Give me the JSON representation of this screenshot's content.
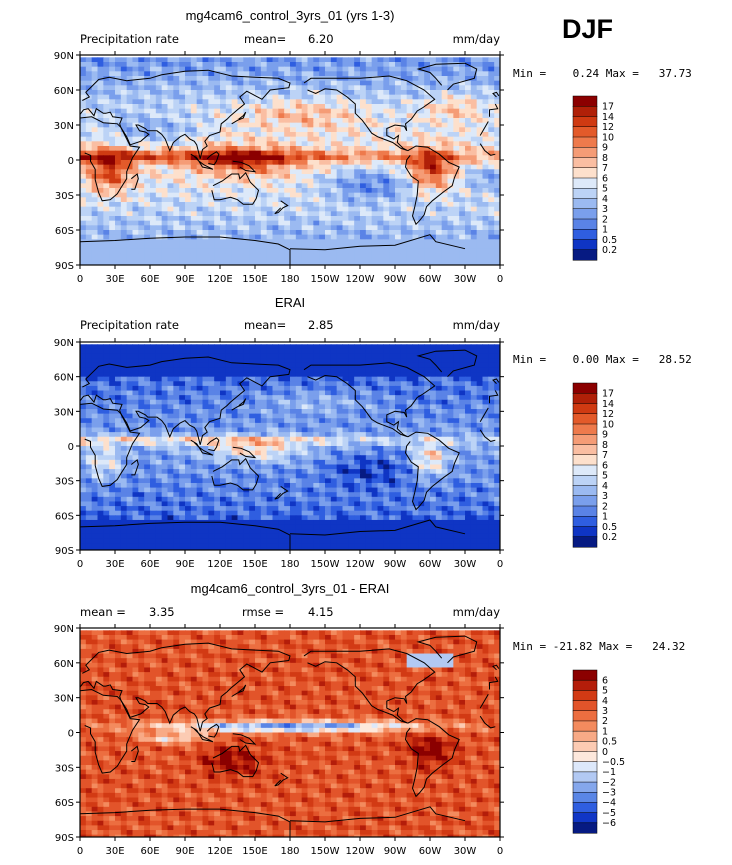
{
  "season": "DJF",
  "lat_labels": [
    "90N",
    "60N",
    "30N",
    "0",
    "30S",
    "60S",
    "90S"
  ],
  "lon_labels": [
    "0",
    "30E",
    "60E",
    "90E",
    "120E",
    "150E",
    "180",
    "150W",
    "120W",
    "90W",
    "60W",
    "30W",
    "0"
  ],
  "chart_data": [
    {
      "type": "heatmap",
      "title": "mg4cam6_control_3yrs_01 (yrs 1-3)",
      "left_label": "Precipitation rate",
      "center_label": "mean=",
      "center_value": "6.20",
      "units": "mm/day",
      "min_text": "Min =    0.24 Max =   37.73",
      "xlim": [
        0,
        360
      ],
      "ylim": [
        -90,
        90
      ],
      "colorbar_levels": [
        "17",
        "14",
        "12",
        "10",
        "9",
        "8",
        "7",
        "6",
        "5",
        "4",
        "3",
        "2",
        "1",
        "0.5",
        "0.2"
      ],
      "colors": [
        "#8b0000",
        "#b02008",
        "#cf3a12",
        "#e35a2a",
        "#ee7a4c",
        "#f59c76",
        "#fabea2",
        "#fde0cc",
        "#dde9f9",
        "#bcd3f6",
        "#9bbaf1",
        "#7a9fec",
        "#5a83e6",
        "#2f5ee0",
        "#0f35c4",
        "#061a82"
      ],
      "pattern": "model"
    },
    {
      "type": "heatmap",
      "title": "ERAI",
      "left_label": "Precipitation rate",
      "center_label": "mean=",
      "center_value": "2.85",
      "units": "mm/day",
      "min_text": "Min =    0.00 Max =   28.52",
      "xlim": [
        0,
        360
      ],
      "ylim": [
        -90,
        90
      ],
      "colorbar_levels": [
        "17",
        "14",
        "12",
        "10",
        "9",
        "8",
        "7",
        "6",
        "5",
        "4",
        "3",
        "2",
        "1",
        "0.5",
        "0.2"
      ],
      "colors": [
        "#8b0000",
        "#b02008",
        "#cf3a12",
        "#e35a2a",
        "#ee7a4c",
        "#f59c76",
        "#fabea2",
        "#fde0cc",
        "#dde9f9",
        "#bcd3f6",
        "#9bbaf1",
        "#7a9fec",
        "#5a83e6",
        "#2f5ee0",
        "#0f35c4",
        "#061a82"
      ],
      "pattern": "obs"
    },
    {
      "type": "heatmap",
      "title": "mg4cam6_control_3yrs_01 - ERAI",
      "left_label": "mean =",
      "left_value": "3.35",
      "center_label": "rmse =",
      "center_value": "4.15",
      "units": "mm/day",
      "min_text": "Min = -21.82 Max =   24.32",
      "xlim": [
        0,
        360
      ],
      "ylim": [
        -90,
        90
      ],
      "colorbar_levels": [
        "6",
        "5",
        "4",
        "3",
        "2",
        "1",
        "0.5",
        "0",
        "−0.5",
        "−1",
        "−2",
        "−3",
        "−4",
        "−5",
        "−6"
      ],
      "colors": [
        "#8b0000",
        "#b41d0a",
        "#d23a14",
        "#e2542a",
        "#ec6e40",
        "#f38b5e",
        "#f8aa86",
        "#fccbb3",
        "#fde8dc",
        "#dde8fa",
        "#b2c9f3",
        "#85a7ec",
        "#5a86e6",
        "#2f5ee0",
        "#1036c6",
        "#061a82"
      ],
      "pattern": "diff"
    }
  ]
}
